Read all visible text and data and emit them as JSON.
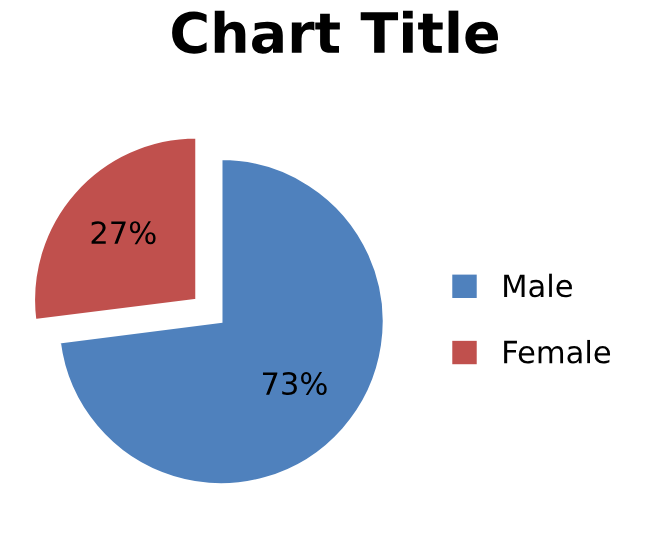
{
  "chart_data": {
    "type": "pie",
    "title": "Chart Title",
    "categories": [
      "Male",
      "Female"
    ],
    "values": [
      73,
      27
    ],
    "colors": [
      "#4f81bd",
      "#c0504d"
    ],
    "value_labels": [
      "73%",
      "27%"
    ],
    "legend": "right"
  }
}
